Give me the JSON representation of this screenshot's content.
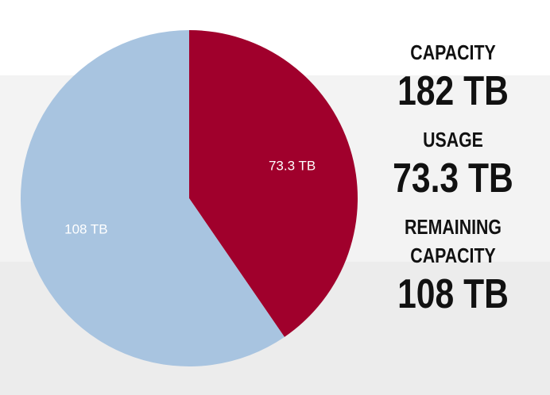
{
  "chart_data": {
    "type": "pie",
    "values": [
      73.3,
      108
    ],
    "value_labels": [
      "73.3 TB",
      "108 TB"
    ],
    "colors": [
      "#a0002c",
      "#a8c4e0"
    ]
  },
  "stats": [
    {
      "label": "CAPACITY",
      "value": "182 TB"
    },
    {
      "label": "USAGE",
      "value": "73.3 TB"
    },
    {
      "label": "REMAINING CAPACITY",
      "value": "108 TB"
    }
  ]
}
